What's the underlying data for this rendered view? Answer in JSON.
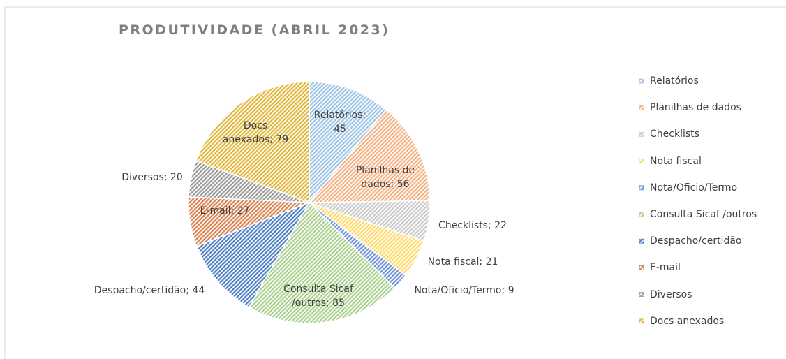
{
  "chart_data": {
    "type": "pie",
    "title": "PRODUTIVIDADE (ABRIL 2023)",
    "categories": [
      "Relatórios",
      "Planilhas de dados",
      "Checklists",
      "Nota fiscal",
      "Nota/Oficio/Termo",
      "Consulta Sicaf /outros",
      "Despacho/certidão",
      "E-mail",
      "Diversos",
      "Docs anexados"
    ],
    "values": [
      45,
      56,
      22,
      21,
      9,
      85,
      44,
      27,
      20,
      79
    ],
    "value_labels": [
      "Relatórios; 45",
      "Planilhas de dados; 56",
      "Checklists; 22",
      "Nota fiscal; 21",
      "Nota/Oficio/Termo; 9",
      "Consulta Sicaf /outros; 85",
      "Despacho/certidão; 44",
      "E-mail; 27",
      "Diversos; 20",
      "Docs anexados; 79"
    ],
    "colors": [
      "#9dc3e6",
      "#f4b183",
      "#c9c9c9",
      "#ffd966",
      "#6f93d6",
      "#a9d18e",
      "#4f7fc4",
      "#d9824f",
      "#9a9a9a",
      "#e2b53a"
    ],
    "legend": "right"
  }
}
